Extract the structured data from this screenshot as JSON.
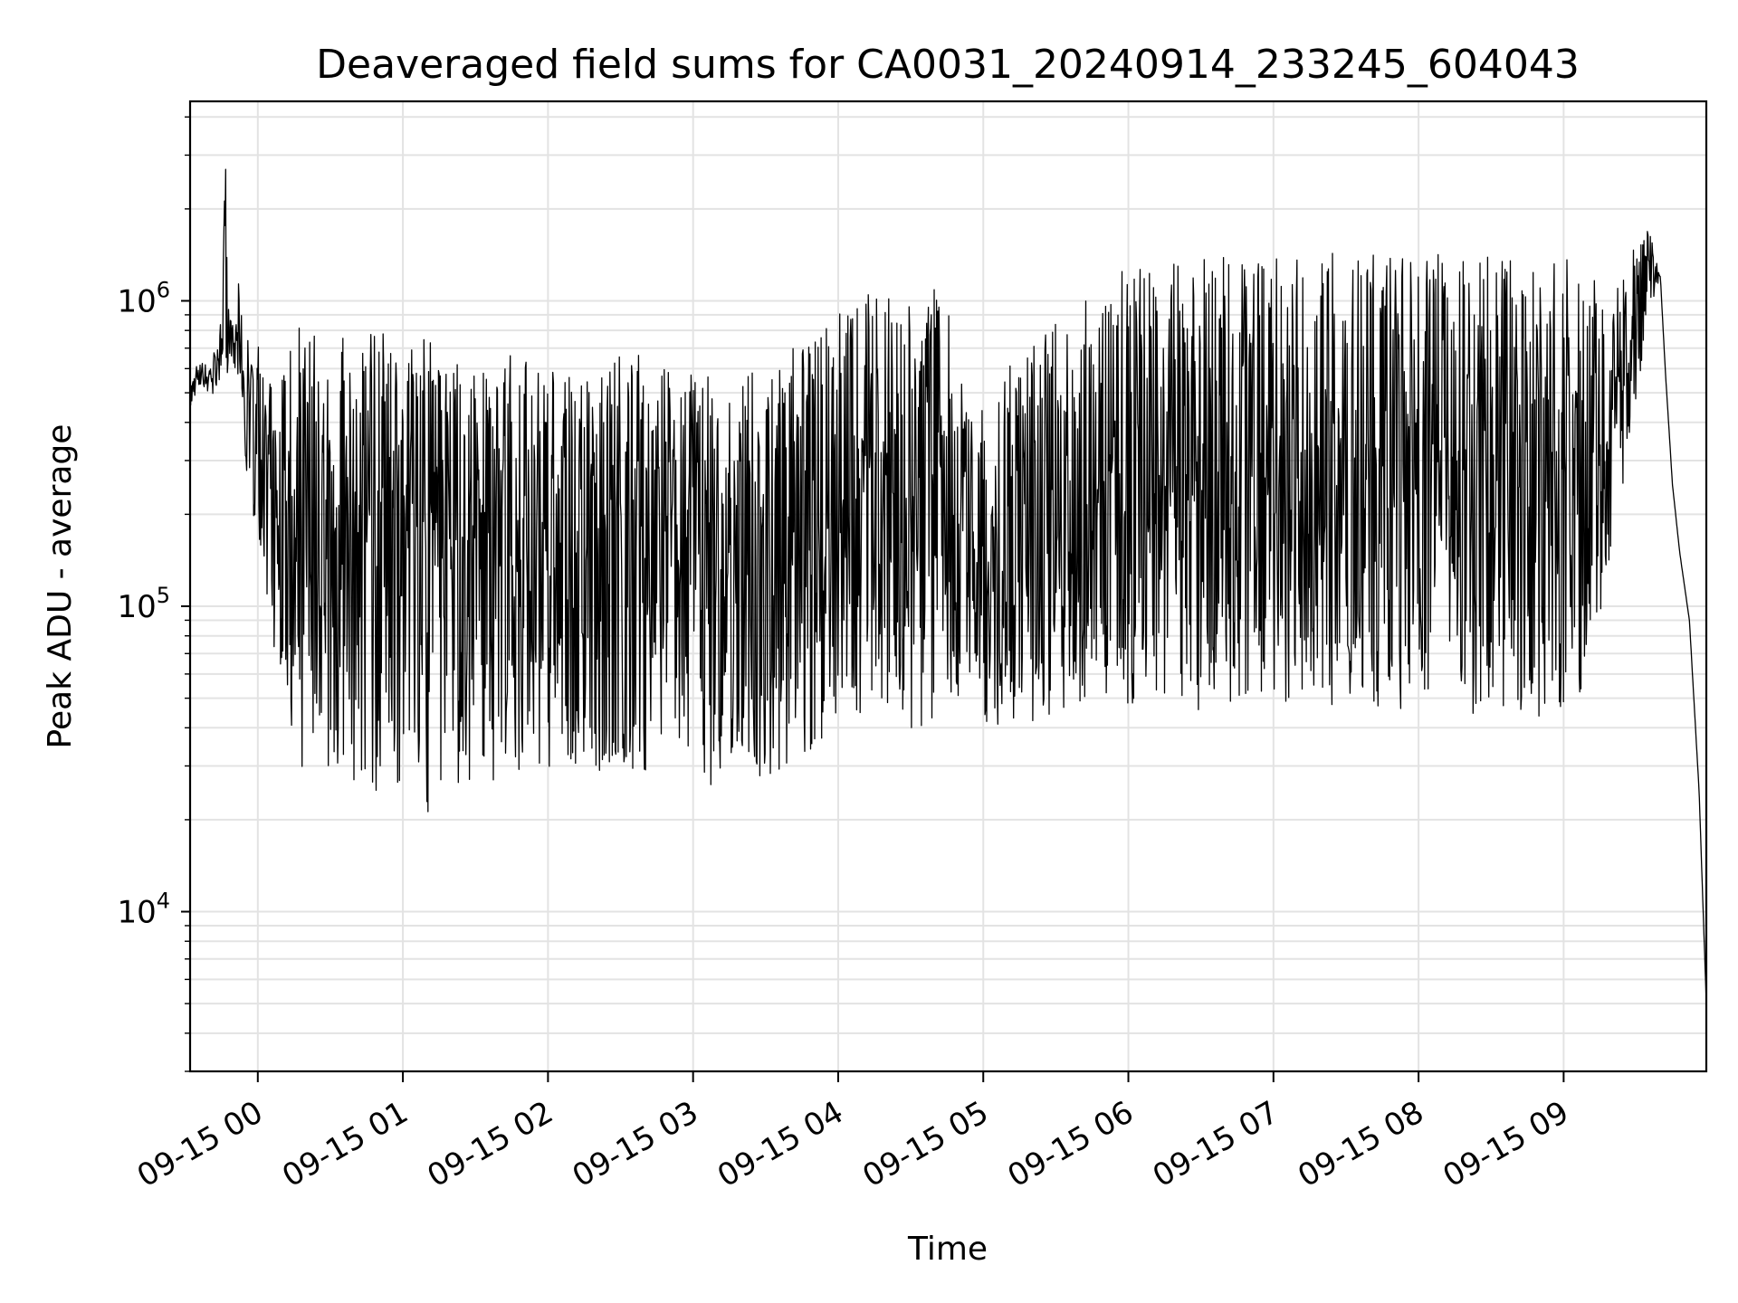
{
  "chart_data": {
    "type": "line",
    "title": "Deaveraged field sums for CA0031_20240914_233245_604043",
    "xlabel": "Time",
    "ylabel": "Peak ADU - average",
    "yscale": "log",
    "ylim": [
      3000,
      4500000
    ],
    "xlim": [
      "2024-09-14 23:32",
      "2024-09-15 09:59"
    ],
    "xticks": [
      {
        "t": "2024-09-15 00:00",
        "label": "09-15 00"
      },
      {
        "t": "2024-09-15 01:00",
        "label": "09-15 01"
      },
      {
        "t": "2024-09-15 02:00",
        "label": "09-15 02"
      },
      {
        "t": "2024-09-15 03:00",
        "label": "09-15 03"
      },
      {
        "t": "2024-09-15 04:00",
        "label": "09-15 04"
      },
      {
        "t": "2024-09-15 05:00",
        "label": "09-15 05"
      },
      {
        "t": "2024-09-15 06:00",
        "label": "09-15 06"
      },
      {
        "t": "2024-09-15 07:00",
        "label": "09-15 07"
      },
      {
        "t": "2024-09-15 08:00",
        "label": "09-15 08"
      },
      {
        "t": "2024-09-15 09:00",
        "label": "09-15 09"
      }
    ],
    "yticks": [
      {
        "value": 10000,
        "base": "10",
        "exp": "4"
      },
      {
        "value": 100000,
        "base": "10",
        "exp": "5"
      },
      {
        "value": 1000000,
        "base": "10",
        "exp": "6"
      }
    ],
    "grid": true,
    "series": [
      {
        "color": "#000000",
        "x": [
          "2024-09-14 23:32",
          "2024-09-14 23:38",
          "2024-09-14 23:44",
          "2024-09-14 23:47",
          "2024-09-14 23:48",
          "2024-09-14 23:50",
          "2024-09-14 23:52",
          "2024-09-14 23:55",
          "2024-09-14 23:58",
          "2024-09-15 00:10",
          "2024-09-15 00:20",
          "2024-09-15 00:30",
          "2024-09-15 00:45",
          "2024-09-15 01:00",
          "2024-09-15 01:15",
          "2024-09-15 01:30",
          "2024-09-15 01:45",
          "2024-09-15 02:00",
          "2024-09-15 02:15",
          "2024-09-15 02:30",
          "2024-09-15 02:45",
          "2024-09-15 03:00",
          "2024-09-15 03:15",
          "2024-09-15 03:30",
          "2024-09-15 03:45",
          "2024-09-15 04:00",
          "2024-09-15 04:15",
          "2024-09-15 04:30",
          "2024-09-15 04:45",
          "2024-09-15 04:55",
          "2024-09-15 05:10",
          "2024-09-15 05:30",
          "2024-09-15 05:45",
          "2024-09-15 06:00",
          "2024-09-15 06:15",
          "2024-09-15 06:30",
          "2024-09-15 06:45",
          "2024-09-15 07:00",
          "2024-09-15 07:15",
          "2024-09-15 07:30",
          "2024-09-15 07:45",
          "2024-09-15 08:00",
          "2024-09-15 08:15",
          "2024-09-15 08:30",
          "2024-09-15 08:45",
          "2024-09-15 09:00",
          "2024-09-15 09:10",
          "2024-09-15 09:20",
          "2024-09-15 09:30",
          "2024-09-15 09:35",
          "2024-09-15 09:40",
          "2024-09-15 09:42",
          "2024-09-15 09:45",
          "2024-09-15 09:48",
          "2024-09-15 09:52",
          "2024-09-15 09:56",
          "2024-09-15 09:59"
        ],
        "y_upper": [
          600000,
          650000,
          700000,
          3200000,
          850000,
          900000,
          1300000,
          800000,
          700000,
          800000,
          850000,
          800000,
          850000,
          800000,
          750000,
          600000,
          700000,
          600000,
          550000,
          700000,
          650000,
          600000,
          550000,
          650000,
          800000,
          900000,
          1100000,
          1000000,
          1200000,
          450000,
          600000,
          900000,
          1100000,
          1300000,
          1400000,
          1400000,
          1400000,
          1400000,
          1400000,
          1450000,
          1400000,
          1450000,
          1400000,
          1400000,
          1400000,
          1400000,
          1300000,
          1000000,
          1600000,
          1800000,
          1200000,
          600000,
          250000,
          150000,
          90000,
          25000,
          5000
        ],
        "y_lower": [
          450000,
          500000,
          480000,
          500000,
          650000,
          600000,
          550000,
          280000,
          200000,
          45000,
          27000,
          30000,
          25000,
          23000,
          20000,
          28000,
          25000,
          25000,
          28000,
          30000,
          28000,
          27000,
          25000,
          27000,
          30000,
          40000,
          42000,
          38000,
          45000,
          40000,
          38000,
          45000,
          50000,
          48000,
          50000,
          45000,
          48000,
          45000,
          48000,
          45000,
          47000,
          45000,
          42000,
          45000,
          42000,
          45000,
          50000,
          150000,
          450000,
          900000,
          1200000,
          600000,
          250000,
          150000,
          90000,
          25000,
          5000
        ]
      }
    ]
  }
}
